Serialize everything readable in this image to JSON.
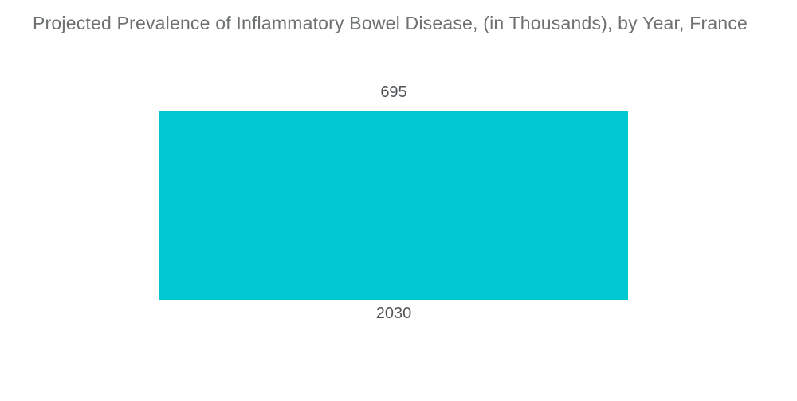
{
  "title": "Projected Prevalence of Inflammatory Bowel Disease, (in Thousands), by Year, France",
  "chart_data": {
    "type": "bar",
    "title": "Projected Prevalence of Inflammatory Bowel Disease, (in Thousands), by Year, France",
    "categories": [
      "2030"
    ],
    "values": [
      695
    ],
    "value_labels": [
      "695"
    ],
    "xlabel": "",
    "ylabel": "",
    "ylim": [
      0,
      695
    ],
    "grid": false,
    "legend": false,
    "bar_color": "#00c8d3",
    "orientation": "vertical"
  },
  "colors": {
    "background": "#ffffff",
    "bar": "#00c8d3",
    "title_text": "#6e7173",
    "label_text": "#515558"
  }
}
